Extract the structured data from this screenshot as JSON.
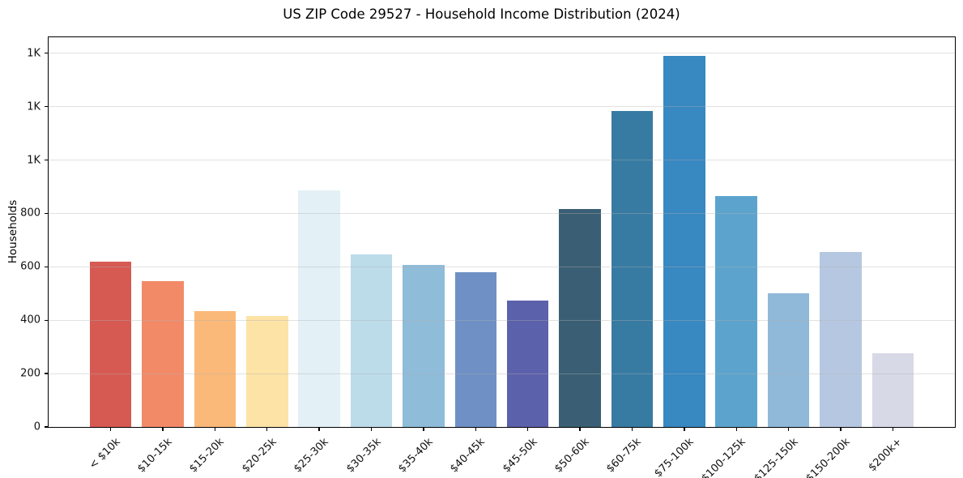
{
  "chart_data": {
    "type": "bar",
    "title": "US ZIP Code 29527 - Household Income Distribution (2024)",
    "xlabel": "",
    "ylabel": "Households",
    "categories": [
      "< $10k",
      "$10-15k",
      "$15-20k",
      "$20-25k",
      "$25-30k",
      "$30-35k",
      "$35-40k",
      "$40-45k",
      "$45-50k",
      "$50-60k",
      "$60-75k",
      "$75-100k",
      "$100-125k",
      "$125-150k",
      "$150-200k",
      "$200k+"
    ],
    "values": [
      620,
      547,
      434,
      415,
      885,
      646,
      608,
      580,
      474,
      818,
      1184,
      1390,
      866,
      501,
      656,
      275
    ],
    "bar_colors": [
      "#d65a52",
      "#f28a68",
      "#fab978",
      "#fde3a6",
      "#e3f0f5",
      "#bcdcea",
      "#8fbcd9",
      "#6e90c4",
      "#5c61ab",
      "#3a5f74",
      "#377ba3",
      "#3888c1",
      "#5ca4cd",
      "#90b8d8",
      "#b6c8e1",
      "#d7d9e7"
    ],
    "ylim": [
      0,
      1460
    ],
    "xlim": [
      -1.19,
      16.19
    ],
    "bar_width": 0.8,
    "yticks": [
      {
        "value": 0,
        "label": "0"
      },
      {
        "value": 200,
        "label": "200"
      },
      {
        "value": 400,
        "label": "400"
      },
      {
        "value": 600,
        "label": "600"
      },
      {
        "value": 800,
        "label": "800"
      },
      {
        "value": 1000,
        "label": "1K"
      },
      {
        "value": 1200,
        "label": "1K"
      },
      {
        "value": 1400,
        "label": "1K"
      }
    ],
    "grid": {
      "axis": "y",
      "color": "#b0b0b0",
      "alpha": 0.38,
      "drawn_above_bars": true
    },
    "xtick_label_rotation_deg": 45,
    "legend": null,
    "background": "#ffffff"
  }
}
